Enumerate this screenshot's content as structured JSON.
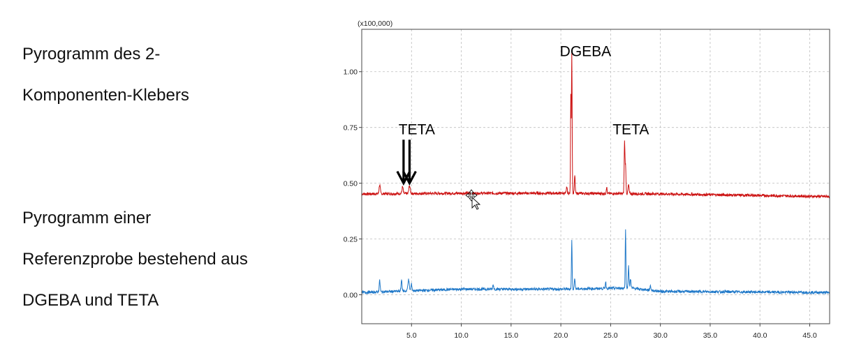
{
  "captions": {
    "top_line1": "Pyrogramm des 2-",
    "top_line2": "Komponenten-Klebers",
    "bottom_line1": "Pyrogramm einer",
    "bottom_line2": "Referenzprobe bestehend aus",
    "bottom_line3": "DGEBA und TETA"
  },
  "chart_data": {
    "type": "line",
    "y_multiplier_label": "(x100,000)",
    "xlim": [
      0,
      47
    ],
    "ylim": [
      -0.13,
      1.19
    ],
    "grid": true,
    "x_ticks": [
      5,
      10,
      15,
      20,
      25,
      30,
      35,
      40,
      45
    ],
    "x_tick_labels": [
      "5.0",
      "10.0",
      "15.0",
      "20.0",
      "25.0",
      "30.0",
      "35.0",
      "40.0",
      "45.0"
    ],
    "y_ticks": [
      0,
      0.25,
      0.5,
      0.75,
      1.0
    ],
    "y_tick_labels": [
      "0.00",
      "0.25",
      "0.50",
      "0.75",
      "1.00"
    ],
    "series": [
      {
        "color": "#cc1111",
        "baseline": [
          [
            0,
            0.452
          ],
          [
            10,
            0.455
          ],
          [
            20,
            0.455
          ],
          [
            30,
            0.452
          ],
          [
            47,
            0.44
          ]
        ],
        "peaks": [
          {
            "x": 1.8,
            "h": 0.04,
            "w": 0.06
          },
          {
            "x": 4.1,
            "h": 0.03,
            "w": 0.06
          },
          {
            "x": 4.8,
            "h": 0.035,
            "w": 0.07
          },
          {
            "x": 20.6,
            "h": 0.03,
            "w": 0.04
          },
          {
            "x": 21.0,
            "h": 0.44,
            "w": 0.03
          },
          {
            "x": 21.1,
            "h": 0.64,
            "w": 0.035
          },
          {
            "x": 21.4,
            "h": 0.08,
            "w": 0.04
          },
          {
            "x": 24.6,
            "h": 0.03,
            "w": 0.04
          },
          {
            "x": 26.4,
            "h": 0.23,
            "w": 0.04
          },
          {
            "x": 26.5,
            "h": 0.12,
            "w": 0.04
          },
          {
            "x": 26.8,
            "h": 0.04,
            "w": 0.05
          }
        ]
      },
      {
        "color": "#1f78c8",
        "baseline": [
          [
            0,
            0.01
          ],
          [
            10,
            0.025
          ],
          [
            20,
            0.025
          ],
          [
            27,
            0.03
          ],
          [
            30,
            0.015
          ],
          [
            47,
            0.01
          ]
        ],
        "peaks": [
          {
            "x": 1.8,
            "h": 0.05,
            "w": 0.05
          },
          {
            "x": 4.0,
            "h": 0.05,
            "w": 0.05
          },
          {
            "x": 4.7,
            "h": 0.05,
            "w": 0.07
          },
          {
            "x": 5.0,
            "h": 0.03,
            "w": 0.05
          },
          {
            "x": 13.2,
            "h": 0.02,
            "w": 0.05
          },
          {
            "x": 21.1,
            "h": 0.22,
            "w": 0.035
          },
          {
            "x": 21.4,
            "h": 0.05,
            "w": 0.04
          },
          {
            "x": 24.5,
            "h": 0.03,
            "w": 0.04
          },
          {
            "x": 26.5,
            "h": 0.26,
            "w": 0.035
          },
          {
            "x": 26.8,
            "h": 0.1,
            "w": 0.04
          },
          {
            "x": 27.0,
            "h": 0.04,
            "w": 0.05
          },
          {
            "x": 29.0,
            "h": 0.02,
            "w": 0.05
          }
        ]
      }
    ],
    "annotations": [
      {
        "text": "DGEBA",
        "x": 19.9,
        "y": 1.07
      },
      {
        "text": "TETA",
        "x": 25.2,
        "y": 0.72
      },
      {
        "text": "TETA",
        "x": 3.7,
        "y": 0.72
      }
    ],
    "arrows": [
      {
        "x": 4.2,
        "y_from": 0.695,
        "y_to": 0.5
      },
      {
        "x": 4.8,
        "y_from": 0.695,
        "y_to": 0.5
      }
    ]
  }
}
